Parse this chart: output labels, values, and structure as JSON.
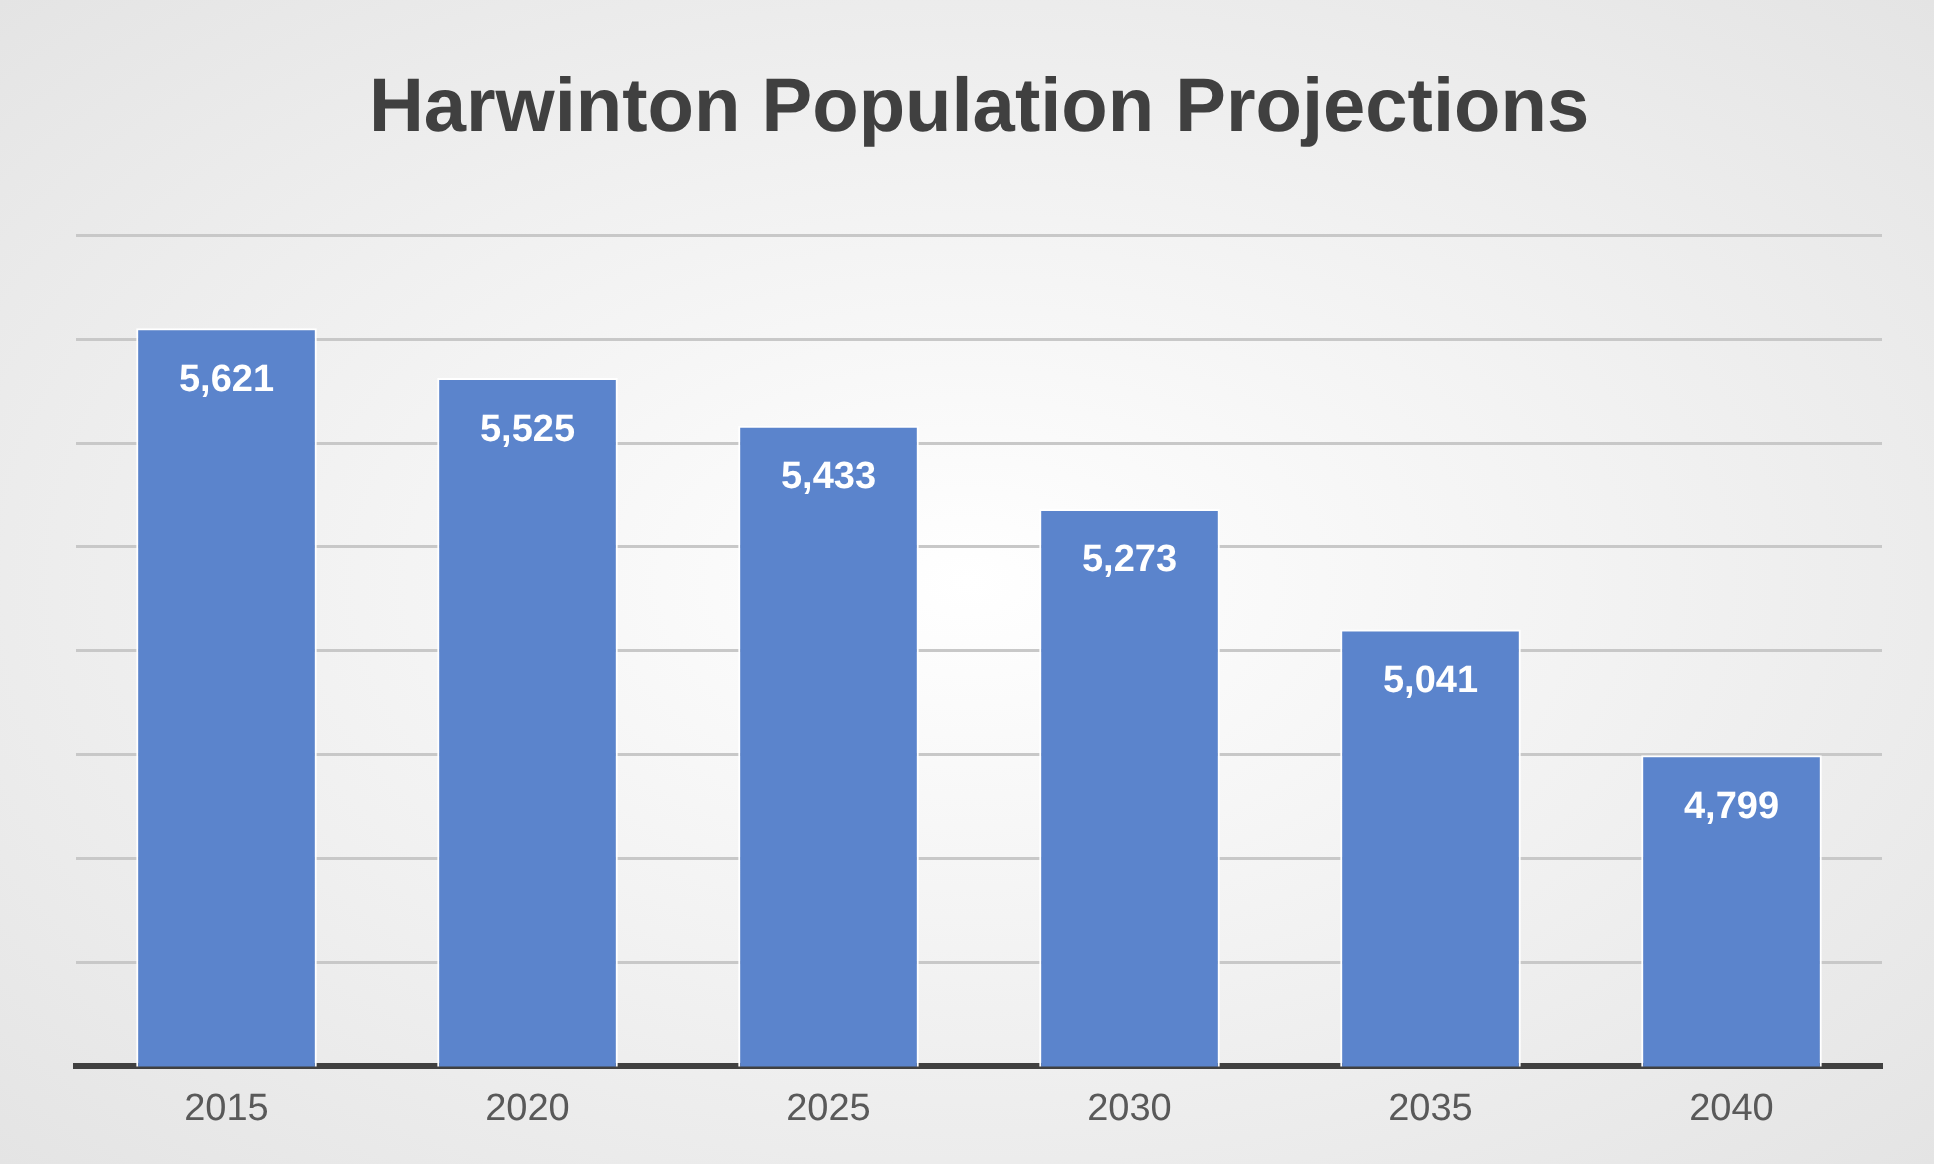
{
  "chart_data": {
    "type": "bar",
    "title": "Harwinton Population Projections",
    "categories": [
      "2015",
      "2020",
      "2025",
      "2030",
      "2035",
      "2040"
    ],
    "values": [
      5621,
      5525,
      5433,
      5273,
      5041,
      4799
    ],
    "color": "#5b84cc",
    "value_labels": [
      "5,621",
      "5,525",
      "5,433",
      "5,273",
      "5,041",
      "4,799"
    ],
    "ylim": [
      4200,
      5800
    ],
    "grid": "y",
    "tick_labels": "x"
  }
}
